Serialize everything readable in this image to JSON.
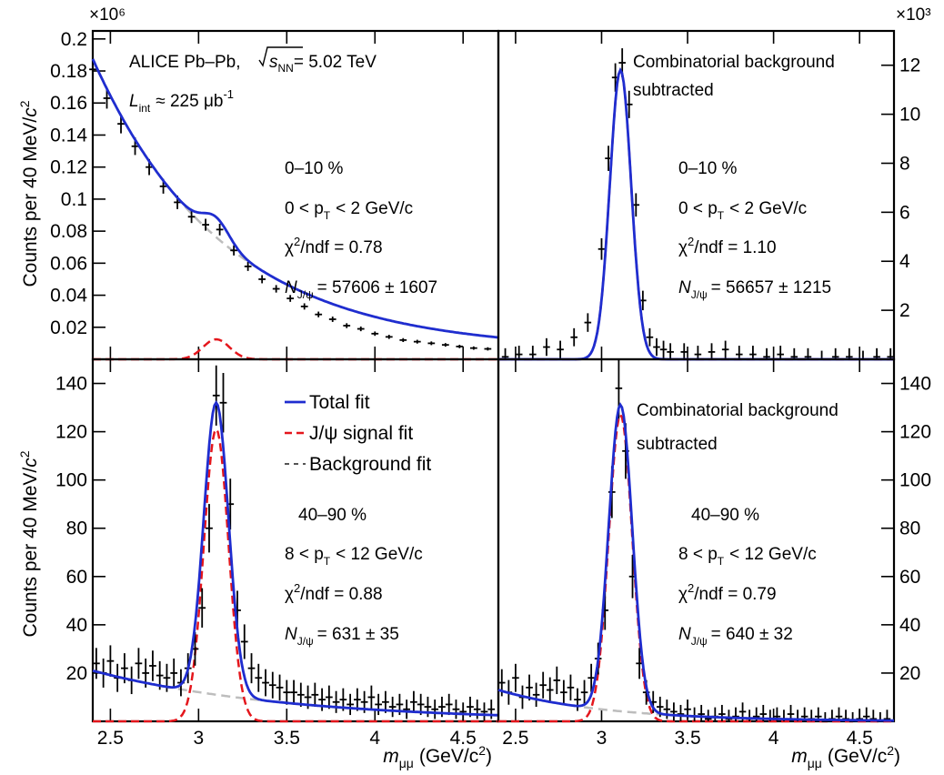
{
  "chart_data": [
    {
      "type": "scatter",
      "panel": "top-left",
      "ylim": [
        0,
        0.205
      ],
      "xlim": [
        2.4,
        4.7
      ],
      "ylabel": "Counts per 40 MeV/c2",
      "y_multiplier": "×10⁶",
      "yticks": [
        "0.02",
        "0.04",
        "0.06",
        "0.08",
        "0.1",
        "0.12",
        "0.14",
        "0.16",
        "0.18",
        "0.2"
      ],
      "annotations": {
        "experiment": "ALICE Pb–Pb,",
        "energy": "= 5.02 TeV",
        "lumi": "≈ 225 μb",
        "lumi_exp": "-1",
        "centrality": "0–10 %",
        "pt": "0 < p",
        "pt_range": "< 2 GeV/c",
        "chi2": "/ndf = 0.78",
        "yield": "= 57606 ± 1607"
      },
      "peak": {
        "mu": 3.1,
        "sigma": 0.075,
        "amp": 0.0125
      },
      "background": {
        "A": 0.182,
        "k": 1.35,
        "C": 0.0055
      },
      "points": {
        "x": [
          2.4,
          2.48,
          2.56,
          2.64,
          2.72,
          2.8,
          2.88,
          2.96,
          3.04,
          3.12,
          3.2,
          3.28,
          3.36,
          3.44,
          3.52,
          3.6,
          3.68,
          3.76,
          3.84,
          3.92,
          4.0,
          4.08,
          4.16,
          4.24,
          4.32,
          4.4,
          4.48,
          4.56,
          4.64
        ],
        "y": [
          0.181,
          0.163,
          0.147,
          0.133,
          0.12,
          0.108,
          0.098,
          0.089,
          0.084,
          0.081,
          0.068,
          0.058,
          0.05,
          0.044,
          0.038,
          0.033,
          0.028,
          0.025,
          0.021,
          0.019,
          0.016,
          0.014,
          0.012,
          0.011,
          0.01,
          0.009,
          0.008,
          0.007,
          0.0065
        ]
      }
    },
    {
      "type": "scatter",
      "panel": "top-right",
      "ylim": [
        0,
        13.4
      ],
      "xlim": [
        2.4,
        4.7
      ],
      "y_multiplier": "×10³",
      "yticks": [
        "2",
        "4",
        "6",
        "8",
        "10",
        "12"
      ],
      "annotations": {
        "title_1": "Combinatorial background",
        "title_2": "subtracted",
        "centrality": "0–10 %",
        "pt": "0 < p",
        "pt_range": "< 2 GeV/c",
        "chi2": "/ndf = 1.10",
        "yield": "= 56657 ± 1215"
      },
      "peak": {
        "mu": 3.11,
        "sigma": 0.062,
        "amp": 11.8
      },
      "points": {
        "x": [
          2.44,
          2.52,
          2.6,
          2.68,
          2.76,
          2.84,
          2.92,
          3.0,
          3.04,
          3.08,
          3.12,
          3.16,
          3.2,
          3.24,
          3.28,
          3.32,
          3.36,
          3.4,
          3.48,
          3.56,
          3.64,
          3.72,
          3.8,
          3.88,
          3.96,
          4.04,
          4.12,
          4.2,
          4.28,
          4.36,
          4.44,
          4.52,
          4.6,
          4.68
        ],
        "y": [
          0.1,
          0.2,
          0.2,
          0.5,
          0.4,
          0.9,
          1.5,
          4.5,
          8.2,
          11.5,
          12.1,
          10.4,
          6.3,
          2.4,
          0.9,
          0.5,
          0.4,
          0.3,
          0.3,
          0.2,
          0.3,
          0.4,
          0.2,
          0.2,
          0.1,
          0.2,
          0.1,
          0.1,
          0.0,
          0.1,
          0.1,
          0.0,
          0.1,
          0.1
        ]
      }
    },
    {
      "type": "scatter",
      "panel": "bottom-left",
      "ylim": [
        0,
        150
      ],
      "xlim": [
        2.4,
        4.7
      ],
      "ylabel": "Counts per 40 MeV/c2",
      "yticks": [
        "20",
        "40",
        "60",
        "80",
        "100",
        "120",
        "140"
      ],
      "xticks": [
        "2.5",
        "3",
        "3.5",
        "4",
        "4.5"
      ],
      "xlabel_var": "m",
      "xlabel_sub": "μμ",
      "xlabel_unit": "(GeV/c",
      "legend": [
        {
          "label": "Total fit",
          "color": "#1f2dcf",
          "style": "solid"
        },
        {
          "label": "J/ψ signal fit",
          "color": "#e4161c",
          "style": "dashed"
        },
        {
          "label": "Background fit",
          "color": "#555555",
          "style": "dashed"
        }
      ],
      "annotations": {
        "centrality": "40–90 %",
        "pt": "8 < p",
        "pt_range": "< 12 GeV/c",
        "chi2": "/ndf = 0.88",
        "yield": "= 631 ± 35"
      },
      "peak": {
        "mu": 3.1,
        "sigma": 0.07,
        "amp": 121
      },
      "background": {
        "A": 21,
        "k": 0.92,
        "C": 0
      },
      "points": {
        "x": [
          2.42,
          2.46,
          2.5,
          2.54,
          2.58,
          2.62,
          2.66,
          2.7,
          2.74,
          2.78,
          2.82,
          2.86,
          2.9,
          2.94,
          2.98,
          3.02,
          3.06,
          3.1,
          3.14,
          3.18,
          3.22,
          3.26,
          3.3,
          3.34,
          3.38,
          3.42,
          3.46,
          3.5,
          3.54,
          3.58,
          3.62,
          3.66,
          3.7,
          3.74,
          3.78,
          3.82,
          3.86,
          3.9,
          3.94,
          3.98,
          4.02,
          4.06,
          4.1,
          4.14,
          4.18,
          4.22,
          4.26,
          4.3,
          4.34,
          4.38,
          4.42,
          4.46,
          4.5,
          4.54,
          4.58,
          4.62,
          4.66
        ],
        "y": [
          24,
          20,
          25,
          18,
          22,
          17,
          24,
          20,
          23,
          19,
          18,
          20,
          16,
          22,
          30,
          47,
          80,
          135,
          132,
          90,
          46,
          33,
          22,
          18,
          16,
          15,
          14,
          12,
          12,
          11,
          10,
          11,
          9,
          10,
          8,
          9,
          7,
          9,
          8,
          10,
          7,
          8,
          6,
          7,
          5,
          8,
          7,
          6,
          5,
          6,
          7,
          5,
          4,
          6,
          5,
          4,
          5
        ]
      }
    },
    {
      "type": "scatter",
      "panel": "bottom-right",
      "ylim": [
        0,
        150
      ],
      "xlim": [
        2.4,
        4.7
      ],
      "yticks": [
        "20",
        "40",
        "60",
        "80",
        "100",
        "120",
        "140"
      ],
      "xticks": [
        "2.5",
        "3",
        "3.5",
        "4",
        "4.5"
      ],
      "xlabel_var": "m",
      "xlabel_sub": "μμ",
      "xlabel_unit": "(GeV/c",
      "annotations": {
        "title_1": "Combinatorial background",
        "title_2": "subtracted",
        "centrality": "40–90 %",
        "pt": "8 < p",
        "pt_range": "< 12 GeV/c",
        "chi2": "/ndf = 0.79",
        "yield": "= 640 ± 32"
      },
      "peak": {
        "mu": 3.11,
        "sigma": 0.068,
        "amp": 127
      },
      "background": {
        "A": 13,
        "k": 1.6,
        "C": 0
      },
      "points": {
        "x": [
          2.42,
          2.46,
          2.5,
          2.54,
          2.58,
          2.62,
          2.66,
          2.7,
          2.74,
          2.78,
          2.82,
          2.86,
          2.9,
          2.94,
          2.98,
          3.02,
          3.06,
          3.1,
          3.14,
          3.18,
          3.22,
          3.26,
          3.3,
          3.34,
          3.38,
          3.42,
          3.46,
          3.5,
          3.54,
          3.58,
          3.62,
          3.66,
          3.7,
          3.74,
          3.78,
          3.82,
          3.86,
          3.9,
          3.94,
          3.98,
          4.02,
          4.06,
          4.1,
          4.14,
          4.18,
          4.22,
          4.26,
          4.3,
          4.34,
          4.38,
          4.42,
          4.46,
          4.5,
          4.54,
          4.58,
          4.62,
          4.66
        ],
        "y": [
          16,
          12,
          18,
          10,
          14,
          11,
          15,
          13,
          17,
          12,
          14,
          9,
          12,
          18,
          26,
          46,
          95,
          138,
          112,
          60,
          24,
          12,
          8,
          6,
          5,
          4,
          3,
          5,
          2,
          3,
          1,
          2,
          3,
          1,
          2,
          4,
          1,
          2,
          3,
          1,
          2,
          1,
          3,
          1,
          2,
          1,
          2,
          0,
          1,
          2,
          1,
          0,
          1,
          2,
          1,
          0,
          1
        ]
      }
    }
  ]
}
